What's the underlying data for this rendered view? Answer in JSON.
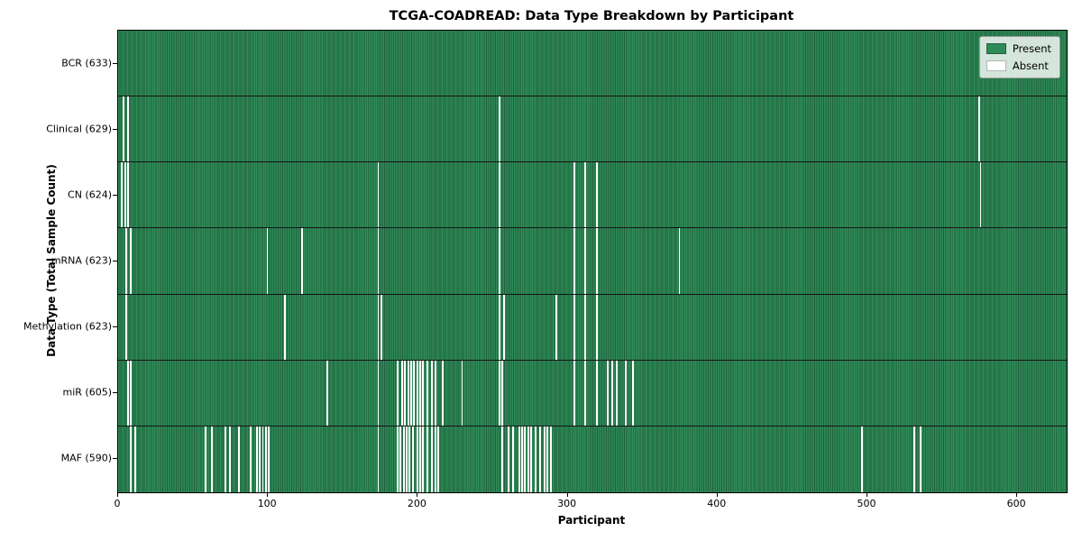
{
  "chart_data": {
    "type": "heatmap",
    "title": "TCGA-COADREAD: Data Type Breakdown by Participant",
    "xlabel": "Participant",
    "ylabel": "Data Type (Total Sample Count)",
    "xlim": [
      0,
      633
    ],
    "n_participants": 633,
    "x_ticks": [
      0,
      100,
      200,
      300,
      400,
      500,
      600
    ],
    "grid": false,
    "legend_position": "upper right",
    "legend": [
      {
        "label": "Present",
        "color": "#2E8B57"
      },
      {
        "label": "Absent",
        "color": "#FFFFFF"
      }
    ],
    "colors": {
      "present": "#2E8B57",
      "cell_edge": "#1F5F3D",
      "absent": "#FFFFFF",
      "axis": "#000000"
    },
    "rows": [
      {
        "label": "BCR",
        "total": 633,
        "display": "BCR (633)",
        "absent": []
      },
      {
        "label": "Clinical",
        "total": 629,
        "display": "Clinical (629)",
        "absent": [
          3,
          6,
          254,
          574
        ]
      },
      {
        "label": "CN",
        "total": 624,
        "display": "CN (624)",
        "absent": [
          2,
          4,
          6,
          173,
          254,
          304,
          311,
          319,
          575
        ]
      },
      {
        "label": "mRNA",
        "total": 623,
        "display": "mRNA (623)",
        "absent": [
          5,
          8,
          99,
          122,
          173,
          254,
          304,
          311,
          319,
          374
        ]
      },
      {
        "label": "Methylation",
        "total": 623,
        "display": "Methylation (623)",
        "absent": [
          5,
          111,
          173,
          175,
          254,
          257,
          292,
          304,
          311,
          319
        ]
      },
      {
        "label": "miR",
        "total": 605,
        "display": "miR (605)",
        "absent": [
          6,
          8,
          139,
          173,
          186,
          189,
          191,
          193,
          195,
          197,
          199,
          201,
          203,
          206,
          209,
          211,
          216,
          229,
          254,
          256,
          304,
          311,
          319,
          326,
          329,
          332,
          338,
          343
        ]
      },
      {
        "label": "MAF",
        "total": 590,
        "display": "MAF (590)",
        "absent": [
          8,
          11,
          58,
          62,
          71,
          74,
          80,
          88,
          92,
          94,
          96,
          98,
          100,
          173,
          186,
          188,
          190,
          192,
          194,
          196,
          199,
          201,
          203,
          206,
          209,
          211,
          213,
          256,
          260,
          263,
          267,
          269,
          271,
          273,
          275,
          278,
          281,
          284,
          286,
          288,
          496,
          531,
          535
        ]
      }
    ]
  }
}
